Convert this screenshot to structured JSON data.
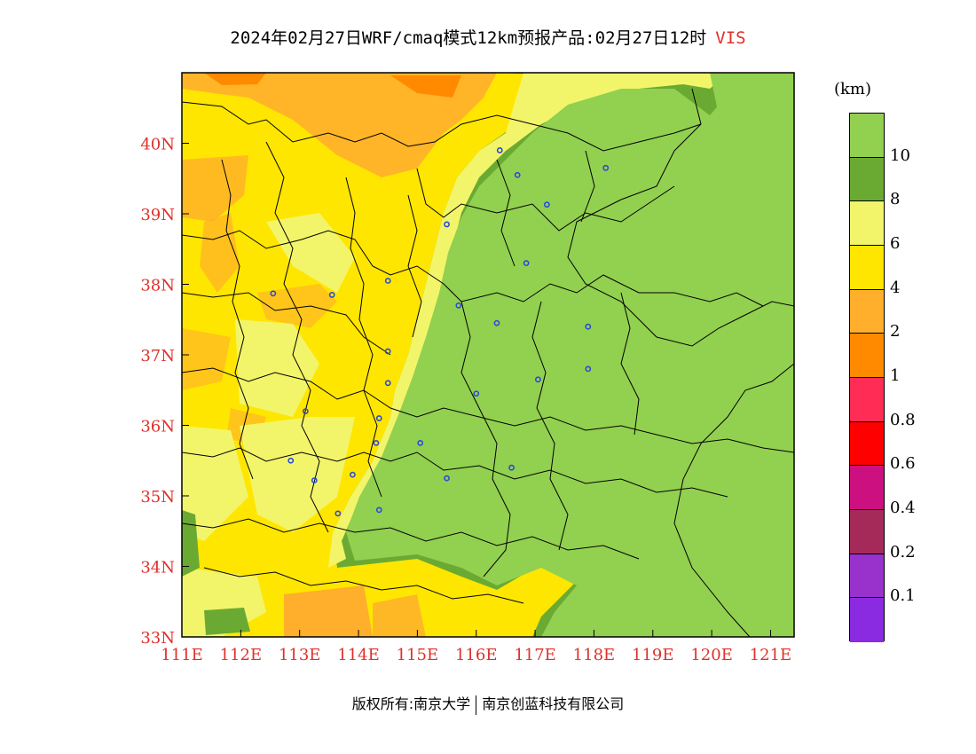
{
  "title": {
    "main": "2024年02月27日WRF/cmaq模式12km预报产品:02月27日12时",
    "variable": "VIS"
  },
  "axes": {
    "lat_ticks": [
      "33N",
      "34N",
      "35N",
      "36N",
      "37N",
      "38N",
      "39N",
      "40N"
    ],
    "lon_ticks": [
      "111E",
      "112E",
      "113E",
      "114E",
      "115E",
      "116E",
      "117E",
      "118E",
      "119E",
      "120E",
      "121E"
    ],
    "lon_range": [
      111,
      121.4
    ],
    "lat_range": [
      33,
      41
    ]
  },
  "colorbar": {
    "unit": "(km)",
    "labels": [
      "10",
      "8",
      "6",
      "4",
      "2",
      "1",
      "0.8",
      "0.6",
      "0.4",
      "0.2",
      "0.1"
    ],
    "colors": [
      "#92d050",
      "#6aaa32",
      "#f2f56a",
      "#ffe600",
      "#ffaf2b",
      "#ff8a00",
      "#ff2d55",
      "#ff0000",
      "#cc1080",
      "#a52a5a",
      "#9932cc",
      "#8a2be2"
    ]
  },
  "footer": {
    "left": "版权所有:南京大学",
    "right": "南京创蓝科技有限公司"
  },
  "colors": {
    "title_accent": "#e0302a",
    "tick_color": "#e0302a",
    "station_marker": "#2a4bd7"
  },
  "stations": [
    [
      116.4,
      39.9
    ],
    [
      116.7,
      39.55
    ],
    [
      117.2,
      39.13
    ],
    [
      118.2,
      39.65
    ],
    [
      115.5,
      38.85
    ],
    [
      116.85,
      38.3
    ],
    [
      112.55,
      37.87
    ],
    [
      113.55,
      37.85
    ],
    [
      114.5,
      38.05
    ],
    [
      115.7,
      37.7
    ],
    [
      116.35,
      37.45
    ],
    [
      117.9,
      37.4
    ],
    [
      114.5,
      37.05
    ],
    [
      114.5,
      36.6
    ],
    [
      117.05,
      36.65
    ],
    [
      117.9,
      36.8
    ],
    [
      116.0,
      36.45
    ],
    [
      113.1,
      36.2
    ],
    [
      114.35,
      36.1
    ],
    [
      114.3,
      35.75
    ],
    [
      115.05,
      35.75
    ],
    [
      112.85,
      35.5
    ],
    [
      113.25,
      35.22
    ],
    [
      113.9,
      35.3
    ],
    [
      115.5,
      35.25
    ],
    [
      116.6,
      35.4
    ],
    [
      114.35,
      34.8
    ],
    [
      113.65,
      34.75
    ]
  ]
}
